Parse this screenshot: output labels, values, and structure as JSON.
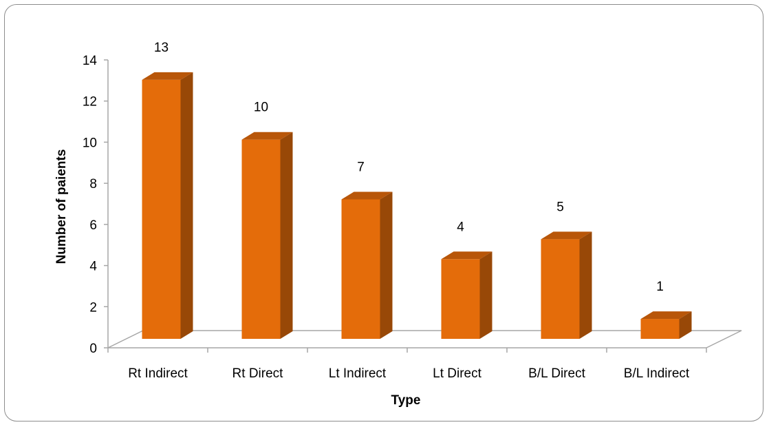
{
  "chart_data": {
    "type": "bar",
    "title": "",
    "xlabel": "Type",
    "ylabel": "Number of paients",
    "categories": [
      "Rt Indirect",
      "Rt Direct",
      "Lt Indirect",
      "Lt Direct",
      "B/L Direct",
      "B/L Indirect"
    ],
    "values": [
      13,
      10,
      7,
      4,
      5,
      1
    ],
    "ylim": [
      0,
      14
    ],
    "yticks": [
      "0",
      "2",
      "4",
      "6",
      "8",
      "10",
      "12",
      "14"
    ],
    "data_labels": [
      "13",
      "10",
      "7",
      "4",
      "5",
      "1"
    ],
    "grid": false,
    "legend": "none",
    "style": "3d-column",
    "colors": {
      "bar_front": "#E46C0A",
      "bar_side": "#984807",
      "bar_top": "#B85609",
      "axis": "#A6A6A6"
    }
  }
}
